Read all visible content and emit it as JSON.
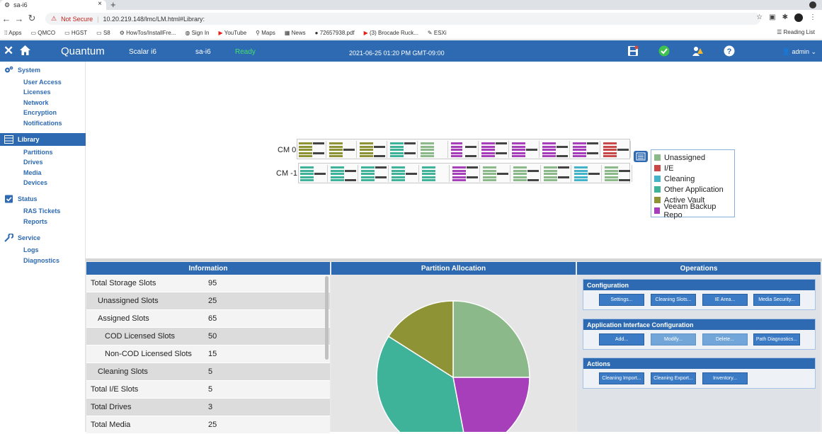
{
  "browser": {
    "tab_title": "sa-i6",
    "tab_close": "×",
    "new_tab": "+",
    "not_secure": "Not Secure",
    "url": "10.20.219.148/lmc/LM.html#Library:",
    "bookmarks": [
      "Apps",
      "QMCO",
      "HGST",
      "S8",
      "HowTos/InstallFre...",
      "Sign In",
      "YouTube",
      "Maps",
      "News",
      "72657938.pdf",
      "(3) Brocade Ruck...",
      "ESXi"
    ],
    "reading_list": "Reading List"
  },
  "header": {
    "brand": "Quantum",
    "model": "Scalar i6",
    "library_name": "sa-i6",
    "status": "Ready",
    "datetime": "2021-06-25 01:20 PM GMT-09:00",
    "user": "admin"
  },
  "sidebar": {
    "sections": [
      {
        "label": "System",
        "items": [
          "User Access",
          "Licenses",
          "Network",
          "Encryption",
          "Notifications"
        ]
      },
      {
        "label": "Library",
        "items": [
          "Partitions",
          "Drives",
          "Media",
          "Devices"
        ]
      },
      {
        "label": "Status",
        "items": [
          "RAS Tickets",
          "Reports"
        ]
      },
      {
        "label": "Service",
        "items": [
          "Logs",
          "Diagnostics"
        ]
      }
    ]
  },
  "library_map": {
    "modules": [
      {
        "label": "CM 0",
        "magazines": [
          "active-vault",
          "active-vault",
          "active-vault",
          "other-application",
          "unassigned",
          "veeam",
          "veeam",
          "veeam",
          "veeam",
          "veeam",
          "ie"
        ]
      },
      {
        "label": "CM -1",
        "magazines": [
          "other-application",
          "other-application",
          "other-application",
          "other-application",
          "other-application",
          "veeam",
          "unassigned",
          "unassigned",
          "unassigned",
          "cleaning",
          "unassigned"
        ]
      }
    ],
    "legend": [
      {
        "label": "Unassigned",
        "color": "#8bb98a"
      },
      {
        "label": "I/E",
        "color": "#c9484a"
      },
      {
        "label": "Cleaning",
        "color": "#43b3c9"
      },
      {
        "label": "Other Application",
        "color": "#3fb29a"
      },
      {
        "label": "Active Vault",
        "color": "#8e9436"
      },
      {
        "label": "Veeam Backup Repo",
        "color": "#a83fba"
      }
    ]
  },
  "information": {
    "title": "Information",
    "rows": [
      {
        "label": "Total Storage Slots",
        "value": "95",
        "indent": 0
      },
      {
        "label": "Unassigned Slots",
        "value": "25",
        "indent": 1
      },
      {
        "label": "Assigned Slots",
        "value": "65",
        "indent": 1
      },
      {
        "label": "COD Licensed Slots",
        "value": "50",
        "indent": 2
      },
      {
        "label": "Non-COD Licensed Slots",
        "value": "15",
        "indent": 2
      },
      {
        "label": "Cleaning Slots",
        "value": "5",
        "indent": 1
      },
      {
        "label": "Total I/E Slots",
        "value": "5",
        "indent": 0
      },
      {
        "label": "Total Drives",
        "value": "3",
        "indent": 0
      },
      {
        "label": "Total Media",
        "value": "25",
        "indent": 0
      }
    ]
  },
  "partition_allocation": {
    "title": "Partition Allocation",
    "chart_data": {
      "type": "pie",
      "slices": [
        {
          "value": 25,
          "color": "#8bb98a"
        },
        {
          "value": 22,
          "color": "#a83fba"
        },
        {
          "value": 37,
          "color": "#3fb29a"
        },
        {
          "value": 16,
          "color": "#8e9436"
        }
      ]
    }
  },
  "operations": {
    "title": "Operations",
    "groups": [
      {
        "title": "Configuration",
        "buttons": [
          {
            "label": "Settings...",
            "enabled": true
          },
          {
            "label": "Cleaning Slots...",
            "enabled": true
          },
          {
            "label": "IE Area...",
            "enabled": true
          },
          {
            "label": "Media Security...",
            "enabled": true
          }
        ]
      },
      {
        "title": "Application Interface Configuration",
        "buttons": [
          {
            "label": "Add...",
            "enabled": true
          },
          {
            "label": "Modify...",
            "enabled": false
          },
          {
            "label": "Delete...",
            "enabled": false
          },
          {
            "label": "Path Diagnostics...",
            "enabled": true
          }
        ]
      },
      {
        "title": "Actions",
        "buttons": [
          {
            "label": "Cleaning Import...",
            "enabled": true
          },
          {
            "label": "Cleaning Export...",
            "enabled": true
          },
          {
            "label": "Inventory...",
            "enabled": true
          }
        ]
      }
    ]
  }
}
